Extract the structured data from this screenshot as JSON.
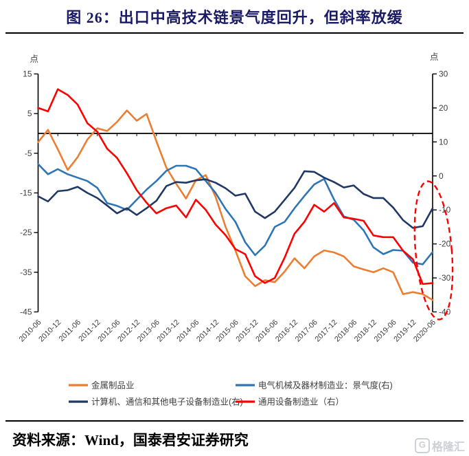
{
  "title": "图 26：出口中高技术链景气度回升，但斜率放缓",
  "footer": {
    "source": "资料来源：Wind，国泰君安证券研究",
    "logo_g": "G",
    "logo_text": "格隆汇"
  },
  "chart_data": {
    "type": "line",
    "title": "出口中高技术链景气度回升，但斜率放缓",
    "left_axis": {
      "label": "点",
      "min": -45,
      "max": 15,
      "ticks": [
        15,
        5,
        -5,
        -15,
        -25,
        -35,
        -45
      ]
    },
    "right_axis": {
      "label": "点",
      "min": -40,
      "max": 30,
      "ticks": [
        30,
        20,
        10,
        0,
        -10,
        -20,
        -30,
        -40
      ]
    },
    "x_tick_labels": [
      "2010-06",
      "2010-12",
      "2011-06",
      "2011-12",
      "2012-06",
      "2012-12",
      "2013-06",
      "2013-12",
      "2014-06",
      "2014-12",
      "2015-06",
      "2015-12",
      "2016-06",
      "2016-12",
      "2017-06",
      "2017-12",
      "2018-06",
      "2018-12",
      "2019-06",
      "2019-12",
      "2020-06"
    ],
    "months_span": 120,
    "sample_interval_months": 3,
    "grid": "off",
    "zero_axis": {
      "value": 0,
      "axis": "left",
      "color": "#000000"
    },
    "legend_position": "bottom",
    "series": [
      {
        "name": "金属制品业",
        "axis": "left",
        "color": "#ED7D31",
        "values": [
          -2.2,
          0.9,
          -4,
          -9.2,
          -6,
          -1.5,
          1.3,
          0.6,
          2.9,
          5.8,
          3.2,
          4.9,
          -2,
          -8.6,
          -12.7,
          -16.4,
          -11.8,
          -10.5,
          -16,
          -23.5,
          -29.5,
          -36,
          -38.5,
          -37,
          -37.5,
          -34.8,
          -31.5,
          -34,
          -31,
          -29.5,
          -30,
          -31,
          -33.5,
          -34.3,
          -35,
          -34,
          -35,
          -40.5,
          -40,
          -40.5,
          -42
        ]
      },
      {
        "name": "电气机械及器材制造业：景气度(右)",
        "axis": "right",
        "color": "#2E75B6",
        "values": [
          3.5,
          0.5,
          2,
          0.5,
          -0.5,
          -1.5,
          -3.5,
          -8,
          -8.8,
          -10,
          -7,
          -4,
          -1.5,
          1.5,
          3,
          3,
          2,
          -1.5,
          -5,
          -9.7,
          -13.5,
          -19.5,
          -23.3,
          -20.5,
          -15,
          -13.5,
          -9.5,
          -5.9,
          -2.5,
          -0.9,
          -6.9,
          -11.9,
          -12.9,
          -16,
          -21,
          -23,
          -21.8,
          -22,
          -25.5,
          -26,
          -22.4
        ]
      },
      {
        "name": "计算机、通信和其他电子设备制造业(右)",
        "axis": "right",
        "color": "#1F3864",
        "values": [
          -6,
          -7.5,
          -4.5,
          -4.2,
          -3.2,
          -5,
          -6.5,
          -8.7,
          -11,
          -9.5,
          -11.5,
          -9.5,
          -7.3,
          -3,
          -1.8,
          -2,
          -1.3,
          -1,
          -2,
          -3.6,
          -5.8,
          -5.2,
          -10.5,
          -12.4,
          -10.5,
          -7,
          -3.5,
          1.4,
          1.2,
          -0.5,
          -1.8,
          -3.4,
          -2.8,
          -5.3,
          -6.5,
          -6.5,
          -9.3,
          -13,
          -15.3,
          -14.8,
          -9.5
        ]
      },
      {
        "name": "通用设备制造业（右）",
        "axis": "right",
        "color": "#FE0000",
        "values": [
          20,
          19,
          25.5,
          23.8,
          21,
          15.5,
          13,
          8,
          5.3,
          0.8,
          -4.2,
          -7.9,
          -11,
          -9.5,
          -8.7,
          -12.2,
          -7,
          -10,
          -14.3,
          -17.4,
          -21.5,
          -23,
          -29.5,
          -31.5,
          -30,
          -24,
          -17,
          -13.5,
          -8.5,
          -10.5,
          -8,
          -12.2,
          -12.6,
          -13.2,
          -17.5,
          -18,
          -18,
          -22,
          -24.5,
          -31.8,
          -31.5
        ]
      }
    ],
    "annotation": {
      "type": "dashed-ellipse",
      "color": "#FF0000",
      "month_center": 120.3,
      "month_radius": 5.5,
      "right_value_center": -21.9,
      "right_value_radius": 20.4,
      "rotation_deg": -5
    }
  }
}
